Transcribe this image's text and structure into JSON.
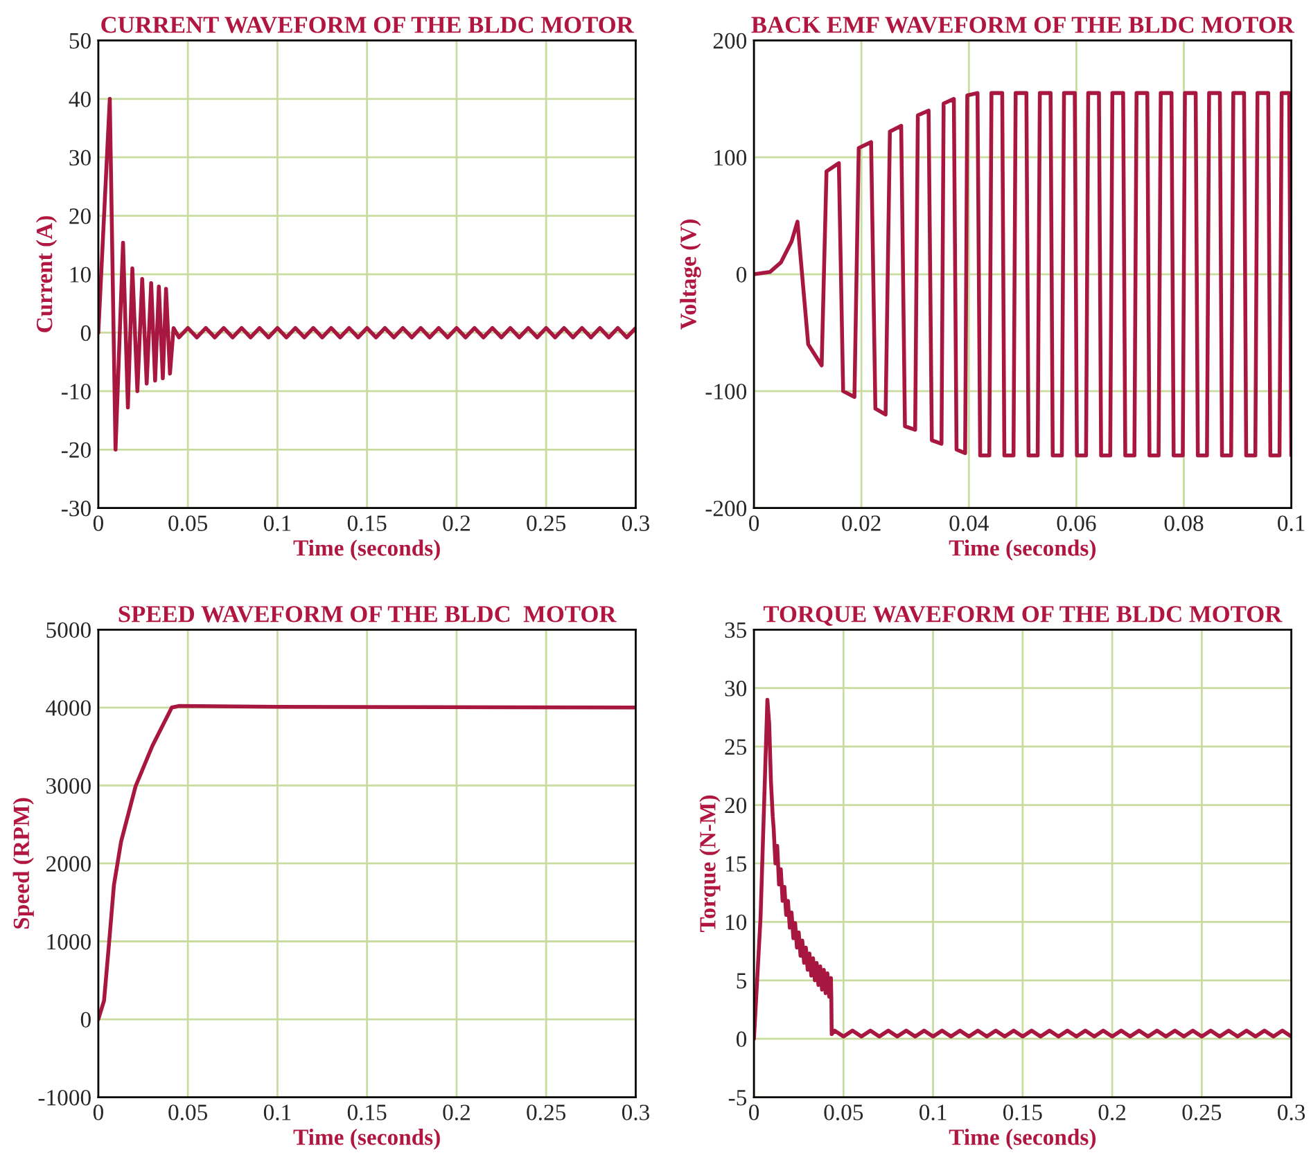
{
  "chart_data": [
    {
      "type": "line",
      "title": "CURRENT WAVEFORM OF THE BLDC MOTOR",
      "xlabel": "Time (seconds)",
      "ylabel": "Current (A)",
      "xlim": [
        0,
        0.3
      ],
      "ylim": [
        -30,
        50
      ],
      "xticks": [
        0,
        0.05,
        0.1,
        0.15,
        0.2,
        0.25,
        0.3
      ],
      "yticks": [
        -30,
        -20,
        -10,
        0,
        10,
        20,
        30,
        40,
        50
      ],
      "grid": true,
      "legend": false,
      "marker": "none",
      "line_style": "solid",
      "series": [
        {
          "color": "#a8173f",
          "x": [
            0,
            0.0064,
            0.0096,
            0.0138,
            0.0165,
            0.019,
            0.0218,
            0.0245,
            0.027,
            0.0295,
            0.0317,
            0.0338,
            0.036,
            0.0378,
            0.04,
            0.042,
            0.045,
            0.05,
            0.055,
            0.06,
            0.065,
            0.07,
            0.075,
            0.08,
            0.085,
            0.09,
            0.095,
            0.1,
            0.105,
            0.11,
            0.115,
            0.12,
            0.125,
            0.13,
            0.135,
            0.14,
            0.145,
            0.15,
            0.155,
            0.16,
            0.165,
            0.17,
            0.175,
            0.18,
            0.185,
            0.19,
            0.195,
            0.2,
            0.205,
            0.21,
            0.215,
            0.22,
            0.225,
            0.23,
            0.235,
            0.24,
            0.245,
            0.25,
            0.255,
            0.26,
            0.265,
            0.27,
            0.275,
            0.28,
            0.285,
            0.29,
            0.295,
            0.3
          ],
          "values": [
            0,
            40,
            -20,
            15.4,
            -12.8,
            11,
            -10,
            9.2,
            -8.7,
            8.5,
            -8.2,
            7.9,
            -7.8,
            7.5,
            -7,
            0.8,
            -0.8,
            0.8,
            -0.8,
            0.8,
            -0.8,
            0.8,
            -0.8,
            0.8,
            -0.8,
            0.8,
            -0.8,
            0.8,
            -0.8,
            0.8,
            -0.8,
            0.8,
            -0.8,
            0.8,
            -0.8,
            0.8,
            -0.8,
            0.8,
            -0.8,
            0.8,
            -0.8,
            0.8,
            -0.8,
            0.8,
            -0.8,
            0.8,
            -0.8,
            0.8,
            -0.8,
            0.8,
            -0.8,
            0.8,
            -0.8,
            0.8,
            -0.8,
            0.8,
            -0.8,
            0.8,
            -0.8,
            0.8,
            -0.8,
            0.8,
            -0.8,
            0.8,
            -0.8,
            0.8,
            -0.8,
            0.8
          ]
        }
      ]
    },
    {
      "type": "line",
      "title": "BACK EMF WAVEFORM OF THE BLDC MOTOR",
      "xlabel": "Time (seconds)",
      "ylabel": "Voltage (V)",
      "xlim": [
        0,
        0.1
      ],
      "ylim": [
        -200,
        200
      ],
      "xticks": [
        0,
        0.02,
        0.04,
        0.06,
        0.08,
        0.1
      ],
      "yticks": [
        -200,
        -100,
        0,
        100,
        200
      ],
      "grid": true,
      "legend": false,
      "marker": "none",
      "line_style": "solid",
      "series": [
        {
          "color": "#a8173f",
          "x": [
            0,
            0.003,
            0.005,
            0.007,
            0.0081,
            0.0101,
            0.0126,
            0.0135,
            0.0158,
            0.0166,
            0.0187,
            0.0195,
            0.0218,
            0.0226,
            0.0245,
            0.0253,
            0.0274,
            0.0281,
            0.03,
            0.0305,
            0.0325,
            0.0331,
            0.0349,
            0.0353,
            0.0372,
            0.0377,
            0.0393,
            0.0397,
            0.0416,
            0.0421,
            0.0438,
            0.0442,
            0.0462,
            0.0466,
            0.0483,
            0.0487,
            0.0507,
            0.0511,
            0.0528,
            0.0532,
            0.0552,
            0.0556,
            0.0573,
            0.0577,
            0.0597,
            0.0601,
            0.0618,
            0.0622,
            0.0642,
            0.0646,
            0.0663,
            0.0667,
            0.0687,
            0.0691,
            0.0708,
            0.0712,
            0.0732,
            0.0736,
            0.0753,
            0.0757,
            0.0777,
            0.0781,
            0.0798,
            0.0802,
            0.0822,
            0.0826,
            0.0843,
            0.0847,
            0.0867,
            0.0871,
            0.0888,
            0.0892,
            0.0912,
            0.0916,
            0.0933,
            0.0937,
            0.0957,
            0.0961,
            0.0978,
            0.0982,
            0.0996,
            0.1
          ],
          "values": [
            0,
            2,
            10,
            28,
            45,
            -60,
            -78,
            88,
            95,
            -100,
            -105,
            108,
            113,
            -115,
            -120,
            122,
            127,
            -130,
            -133,
            136,
            140,
            -142,
            -145,
            146,
            150,
            -150,
            -153,
            153,
            155,
            -155,
            -155,
            155,
            155,
            -155,
            -155,
            155,
            155,
            -155,
            -155,
            155,
            155,
            -155,
            -155,
            155,
            155,
            -155,
            -155,
            155,
            155,
            -155,
            -155,
            155,
            155,
            -155,
            -155,
            155,
            155,
            -155,
            -155,
            155,
            155,
            -155,
            -155,
            155,
            155,
            -155,
            -155,
            155,
            155,
            -155,
            -155,
            155,
            155,
            -155,
            -155,
            155,
            155,
            -155,
            -155,
            155,
            155,
            -155
          ]
        }
      ]
    },
    {
      "type": "line",
      "title": "SPEED WAVEFORM OF THE BLDC  MOTOR",
      "xlabel": "Time (seconds)",
      "ylabel": "Speed (RPM)",
      "xlim": [
        0,
        0.3
      ],
      "ylim": [
        -1000,
        5000
      ],
      "xticks": [
        0,
        0.05,
        0.1,
        0.15,
        0.2,
        0.25,
        0.3
      ],
      "yticks": [
        -1000,
        0,
        1000,
        2000,
        3000,
        4000,
        5000
      ],
      "grid": true,
      "legend": false,
      "marker": "none",
      "line_style": "solid",
      "series": [
        {
          "color": "#a8173f",
          "x": [
            0,
            0.0032,
            0.006,
            0.0087,
            0.0127,
            0.0208,
            0.0302,
            0.041,
            0.045,
            0.1,
            0.3
          ],
          "values": [
            0,
            240,
            980,
            1720,
            2280,
            2990,
            3510,
            4000,
            4020,
            4010,
            4000
          ]
        }
      ]
    },
    {
      "type": "line",
      "title": "TORQUE WAVEFORM OF THE BLDC MOTOR",
      "xlabel": "Time (seconds)",
      "ylabel": "Torque (N-M)",
      "xlim": [
        0,
        0.3
      ],
      "ylim": [
        -5,
        35
      ],
      "xticks": [
        0,
        0.05,
        0.1,
        0.15,
        0.2,
        0.25,
        0.3
      ],
      "yticks": [
        -5,
        0,
        5,
        10,
        15,
        20,
        25,
        30,
        35
      ],
      "grid": true,
      "legend": false,
      "marker": "none",
      "line_style": "solid",
      "series": [
        {
          "color": "#a8173f",
          "x": [
            0,
            0.0037,
            0.0075,
            0.0085,
            0.0095,
            0.0105,
            0.011,
            0.012,
            0.013,
            0.014,
            0.015,
            0.016,
            0.017,
            0.018,
            0.019,
            0.02,
            0.021,
            0.022,
            0.023,
            0.024,
            0.025,
            0.026,
            0.027,
            0.028,
            0.029,
            0.03,
            0.031,
            0.032,
            0.033,
            0.034,
            0.035,
            0.036,
            0.037,
            0.038,
            0.039,
            0.04,
            0.041,
            0.042,
            0.043,
            0.0432,
            0.0434,
            0.045,
            0.05,
            0.055,
            0.06,
            0.065,
            0.07,
            0.075,
            0.08,
            0.085,
            0.09,
            0.095,
            0.1,
            0.105,
            0.11,
            0.115,
            0.12,
            0.125,
            0.13,
            0.135,
            0.14,
            0.145,
            0.15,
            0.155,
            0.16,
            0.165,
            0.17,
            0.175,
            0.18,
            0.185,
            0.19,
            0.195,
            0.2,
            0.205,
            0.21,
            0.215,
            0.22,
            0.225,
            0.23,
            0.235,
            0.24,
            0.245,
            0.25,
            0.255,
            0.26,
            0.265,
            0.27,
            0.275,
            0.28,
            0.285,
            0.29,
            0.295,
            0.3
          ],
          "values": [
            0,
            10.4,
            29,
            27,
            22,
            19,
            18,
            15,
            16.5,
            13.2,
            14.5,
            11.8,
            13,
            10.6,
            11.8,
            9.5,
            10.8,
            8.6,
            9.9,
            7.8,
            9.1,
            7.1,
            8.4,
            6.5,
            7.8,
            5.9,
            7.3,
            5.4,
            6.9,
            5,
            6.5,
            4.6,
            6.2,
            4.2,
            5.9,
            3.9,
            5.6,
            3.6,
            5.2,
            3.5,
            0.4,
            0.7,
            0.2,
            0.7,
            0.2,
            0.7,
            0.2,
            0.7,
            0.2,
            0.7,
            0.2,
            0.7,
            0.2,
            0.7,
            0.2,
            0.7,
            0.2,
            0.7,
            0.2,
            0.7,
            0.2,
            0.7,
            0.2,
            0.7,
            0.2,
            0.7,
            0.2,
            0.7,
            0.2,
            0.7,
            0.2,
            0.7,
            0.2,
            0.7,
            0.2,
            0.7,
            0.2,
            0.7,
            0.2,
            0.7,
            0.2,
            0.7,
            0.2,
            0.7,
            0.2,
            0.7,
            0.2,
            0.7,
            0.2,
            0.7,
            0.2,
            0.7,
            0.2
          ]
        }
      ]
    }
  ]
}
